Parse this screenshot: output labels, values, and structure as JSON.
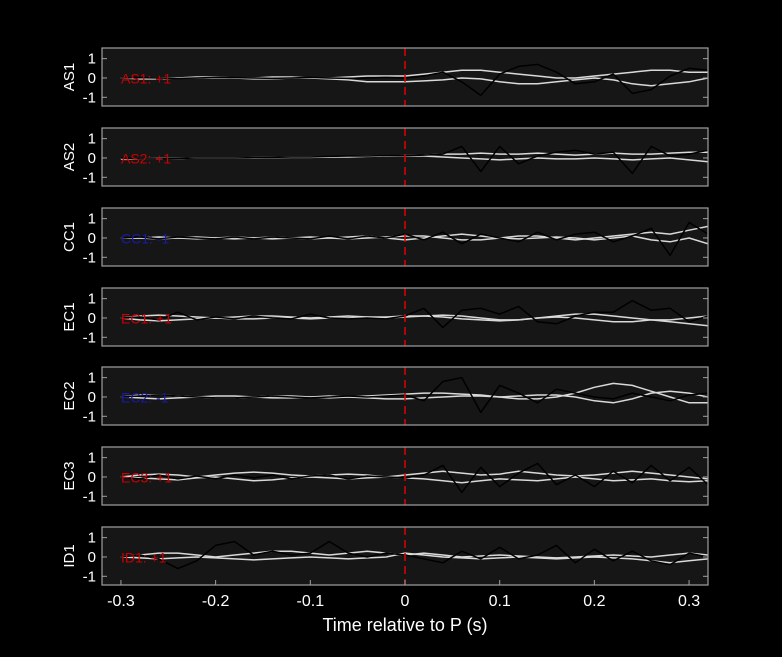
{
  "chart_data": [
    {
      "type": "line",
      "ylabel": "AS1",
      "annotation": "AS1: +1",
      "annotation_color": "#cc0000",
      "vline": 0,
      "vline_color": "#dd0000",
      "x": [
        -0.3,
        -0.28,
        -0.26,
        -0.24,
        -0.22,
        -0.2,
        -0.18,
        -0.16,
        -0.14,
        -0.12,
        -0.1,
        -0.08,
        -0.06,
        -0.04,
        -0.02,
        0,
        0.02,
        0.04,
        0.06,
        0.08,
        0.1,
        0.12,
        0.14,
        0.16,
        0.18,
        0.2,
        0.22,
        0.24,
        0.26,
        0.28,
        0.3,
        0.32
      ],
      "xlim": [
        -0.32,
        0.32
      ],
      "ylim": [
        -1.45,
        1.55
      ],
      "yticks": [
        -1,
        0,
        1
      ],
      "series": [
        {
          "color": "#d9d9d9",
          "values": [
            0,
            0,
            0,
            0,
            0,
            0,
            0,
            0,
            0.05,
            0.05,
            0,
            0,
            0.05,
            0.1,
            0.1,
            0.1,
            0.2,
            0.3,
            0.4,
            0.4,
            0.3,
            0.2,
            0.1,
            0,
            0,
            0.1,
            0.2,
            0.3,
            0.4,
            0.4,
            0.3,
            0.3
          ]
        },
        {
          "color": "#d9d9d9",
          "values": [
            0,
            -0.05,
            -0.05,
            0,
            0.05,
            0.05,
            0,
            -0.05,
            -0.05,
            0,
            0,
            -0.05,
            -0.1,
            -0.2,
            -0.2,
            -0.2,
            -0.15,
            -0.1,
            0,
            -0.05,
            -0.2,
            -0.3,
            -0.3,
            -0.2,
            -0.1,
            0,
            -0.1,
            -0.3,
            -0.4,
            -0.3,
            -0.2,
            0
          ]
        },
        {
          "color": "#000000",
          "values": [
            0,
            0.02,
            0,
            -0.03,
            0,
            0.03,
            0.02,
            0,
            -0.02,
            0,
            0.03,
            0,
            -0.02,
            0,
            0.03,
            0,
            0.1,
            0.3,
            -0.2,
            -0.9,
            0.2,
            0.6,
            0.7,
            0.3,
            -0.3,
            -0.2,
            0.2,
            -0.8,
            -0.6,
            0.1,
            0.5,
            0.4
          ]
        }
      ]
    },
    {
      "type": "line",
      "ylabel": "AS2",
      "annotation": "AS2: +1",
      "annotation_color": "#cc0000",
      "vline": 0,
      "vline_color": "#dd0000",
      "x": [
        -0.3,
        -0.28,
        -0.26,
        -0.24,
        -0.22,
        -0.2,
        -0.18,
        -0.16,
        -0.14,
        -0.12,
        -0.1,
        -0.08,
        -0.06,
        -0.04,
        -0.02,
        0,
        0.02,
        0.04,
        0.06,
        0.08,
        0.1,
        0.12,
        0.14,
        0.16,
        0.18,
        0.2,
        0.22,
        0.24,
        0.26,
        0.28,
        0.3,
        0.32
      ],
      "xlim": [
        -0.32,
        0.32
      ],
      "ylim": [
        -1.45,
        1.55
      ],
      "yticks": [
        -1,
        0,
        1
      ],
      "series": [
        {
          "color": "#d9d9d9",
          "values": [
            -0.05,
            -0.05,
            -0.05,
            -0.03,
            0,
            0,
            0,
            0.02,
            0.03,
            0.05,
            0.05,
            0.05,
            0.08,
            0.1,
            0.1,
            0.12,
            0.15,
            0.2,
            0.2,
            0.25,
            0.2,
            0.2,
            0.25,
            0.2,
            0.15,
            0.2,
            0.25,
            0.2,
            0.2,
            0.25,
            0.3,
            0.3
          ]
        },
        {
          "color": "#d9d9d9",
          "values": [
            -0.05,
            -0.05,
            -0.03,
            -0.03,
            0,
            0,
            0,
            0,
            0.02,
            0.03,
            0.03,
            0.05,
            0.05,
            0.08,
            0.1,
            0.1,
            0.1,
            0.05,
            0,
            -0.05,
            -0.1,
            -0.05,
            0,
            -0.05,
            -0.05,
            0,
            -0.05,
            -0.1,
            -0.05,
            0,
            -0.1,
            -0.2
          ]
        },
        {
          "color": "#000000",
          "values": [
            0,
            -0.05,
            -0.05,
            -0.03,
            0,
            0,
            0,
            0.02,
            0.03,
            0.05,
            0.05,
            0.08,
            0.1,
            0.1,
            0.12,
            0.12,
            0.15,
            0.2,
            0.6,
            -0.7,
            0.6,
            -0.3,
            0.1,
            0.3,
            0.4,
            0.2,
            0.3,
            -0.8,
            0.6,
            0.1,
            0.2,
            0.4
          ]
        }
      ]
    },
    {
      "type": "line",
      "ylabel": "CC1",
      "annotation": "CC1: -1",
      "annotation_color": "#1a1aa6",
      "vline": 0,
      "vline_color": "#dd0000",
      "x": [
        -0.3,
        -0.28,
        -0.26,
        -0.24,
        -0.22,
        -0.2,
        -0.18,
        -0.16,
        -0.14,
        -0.12,
        -0.1,
        -0.08,
        -0.06,
        -0.04,
        -0.02,
        0,
        0.02,
        0.04,
        0.06,
        0.08,
        0.1,
        0.12,
        0.14,
        0.16,
        0.18,
        0.2,
        0.22,
        0.24,
        0.26,
        0.28,
        0.3,
        0.32
      ],
      "xlim": [
        -0.32,
        0.32
      ],
      "ylim": [
        -1.45,
        1.55
      ],
      "yticks": [
        -1,
        0,
        1
      ],
      "series": [
        {
          "color": "#d9d9d9",
          "values": [
            0,
            0,
            0.05,
            0,
            -0.05,
            0,
            0.05,
            0,
            -0.05,
            0,
            0.05,
            0,
            -0.05,
            0,
            0.05,
            0.1,
            0.1,
            0,
            -0.1,
            -0.1,
            0,
            0.1,
            0.1,
            0,
            -0.1,
            0,
            0.1,
            0.2,
            0.3,
            0.2,
            0.4,
            0.6
          ]
        },
        {
          "color": "#d9d9d9",
          "values": [
            0,
            0,
            -0.05,
            0,
            0.05,
            0,
            -0.05,
            0,
            0.05,
            0,
            -0.05,
            0,
            0.05,
            0.1,
            0,
            -0.1,
            0,
            0.1,
            0.2,
            0.1,
            0,
            -0.05,
            0,
            0.05,
            0,
            -0.1,
            0,
            0.1,
            -0.1,
            -0.2,
            0,
            -0.3
          ]
        },
        {
          "color": "#000000",
          "values": [
            0,
            0.05,
            -0.05,
            0.05,
            0,
            -0.05,
            0.05,
            -0.05,
            0.05,
            0,
            -0.05,
            0.1,
            -0.05,
            0.1,
            0,
            0.2,
            -0.1,
            0.3,
            -0.3,
            0.2,
            0,
            -0.2,
            0.3,
            -0.1,
            0.2,
            0.3,
            -0.2,
            0.1,
            0.5,
            -0.9,
            0.8,
            0.2
          ]
        }
      ]
    },
    {
      "type": "line",
      "ylabel": "EC1",
      "annotation": "EC1: +1",
      "annotation_color": "#cc0000",
      "vline": 0,
      "vline_color": "#dd0000",
      "x": [
        -0.3,
        -0.28,
        -0.26,
        -0.24,
        -0.22,
        -0.2,
        -0.18,
        -0.16,
        -0.14,
        -0.12,
        -0.1,
        -0.08,
        -0.06,
        -0.04,
        -0.02,
        0,
        0.02,
        0.04,
        0.06,
        0.08,
        0.1,
        0.12,
        0.14,
        0.16,
        0.18,
        0.2,
        0.22,
        0.24,
        0.26,
        0.28,
        0.3,
        0.32
      ],
      "xlim": [
        -0.32,
        0.32
      ],
      "ylim": [
        -1.45,
        1.55
      ],
      "yticks": [
        -1,
        0,
        1
      ],
      "series": [
        {
          "color": "#d9d9d9",
          "values": [
            0,
            0.1,
            0.15,
            0.1,
            0.05,
            0,
            0.05,
            0.1,
            0.1,
            0.05,
            0,
            0.05,
            0.1,
            0.05,
            0,
            0.05,
            0.1,
            0.15,
            0.1,
            0,
            -0.1,
            -0.1,
            0,
            0.1,
            0.2,
            0.2,
            0.1,
            0,
            -0.1,
            -0.1,
            0,
            0.1
          ]
        },
        {
          "color": "#d9d9d9",
          "values": [
            0,
            -0.1,
            -0.15,
            -0.1,
            -0.05,
            0,
            -0.05,
            -0.05,
            0,
            0,
            -0.05,
            0,
            0,
            0.05,
            0.05,
            0.1,
            0.1,
            0.05,
            -0.05,
            -0.1,
            -0.15,
            -0.1,
            0,
            0.05,
            0,
            -0.1,
            -0.2,
            -0.2,
            -0.1,
            -0.2,
            -0.3,
            -0.4
          ]
        },
        {
          "color": "#000000",
          "values": [
            0,
            0.05,
            -0.1,
            0.3,
            -0.1,
            0.05,
            -0.05,
            0.1,
            0,
            -0.05,
            0.2,
            0,
            -0.05,
            0,
            -0.05,
            0.1,
            0.5,
            -0.5,
            0.4,
            0.5,
            0.2,
            0.6,
            -0.2,
            -0.3,
            0.1,
            0.3,
            0.3,
            0.9,
            0.4,
            0.5,
            -0.2,
            0.1
          ]
        }
      ]
    },
    {
      "type": "line",
      "ylabel": "EC2",
      "annotation": "EC2: -1",
      "annotation_color": "#1a1aa6",
      "vline": 0,
      "vline_color": "#dd0000",
      "x": [
        -0.3,
        -0.28,
        -0.26,
        -0.24,
        -0.22,
        -0.2,
        -0.18,
        -0.16,
        -0.14,
        -0.12,
        -0.1,
        -0.08,
        -0.06,
        -0.04,
        -0.02,
        0,
        0.02,
        0.04,
        0.06,
        0.08,
        0.1,
        0.12,
        0.14,
        0.16,
        0.18,
        0.2,
        0.22,
        0.24,
        0.26,
        0.28,
        0.3,
        0.32
      ],
      "xlim": [
        -0.32,
        0.32
      ],
      "ylim": [
        -1.45,
        1.55
      ],
      "yticks": [
        -1,
        0,
        1
      ],
      "series": [
        {
          "color": "#d9d9d9",
          "values": [
            0,
            0.1,
            0.1,
            0.05,
            0,
            -0.05,
            -0.05,
            0,
            0.05,
            0.05,
            0,
            -0.05,
            0,
            0.05,
            0.1,
            0.15,
            0.2,
            0.2,
            0.15,
            0.1,
            0,
            -0.1,
            -0.1,
            0,
            0.2,
            0.5,
            0.7,
            0.6,
            0.3,
            0,
            -0.3,
            -0.3
          ]
        },
        {
          "color": "#d9d9d9",
          "values": [
            0,
            -0.05,
            -0.1,
            -0.05,
            0,
            0.05,
            0.05,
            0,
            -0.05,
            -0.05,
            0,
            0.05,
            0,
            -0.05,
            -0.1,
            -0.1,
            -0.05,
            0,
            0.05,
            0.05,
            0,
            0.05,
            0.1,
            0.1,
            0,
            -0.2,
            -0.3,
            -0.1,
            0.2,
            0.3,
            0.2,
            0
          ]
        },
        {
          "color": "#000000",
          "values": [
            0,
            0.05,
            0.1,
            0.05,
            0,
            -0.05,
            -0.05,
            0,
            0.05,
            0,
            -0.05,
            0,
            0.05,
            0,
            0.05,
            0.1,
            -0.2,
            0.8,
            1.0,
            -0.8,
            0.6,
            0.2,
            -0.3,
            0.4,
            0.2,
            0,
            -0.1,
            0.2,
            0,
            -0.2,
            0.1,
            0.2
          ]
        }
      ]
    },
    {
      "type": "line",
      "ylabel": "EC3",
      "annotation": "EC3: +1",
      "annotation_color": "#cc0000",
      "vline": 0,
      "vline_color": "#dd0000",
      "x": [
        -0.3,
        -0.28,
        -0.26,
        -0.24,
        -0.22,
        -0.2,
        -0.18,
        -0.16,
        -0.14,
        -0.12,
        -0.1,
        -0.08,
        -0.06,
        -0.04,
        -0.02,
        0,
        0.02,
        0.04,
        0.06,
        0.08,
        0.1,
        0.12,
        0.14,
        0.16,
        0.18,
        0.2,
        0.22,
        0.24,
        0.26,
        0.28,
        0.3,
        0.32
      ],
      "xlim": [
        -0.32,
        0.32
      ],
      "ylim": [
        -1.45,
        1.55
      ],
      "yticks": [
        -1,
        0,
        1
      ],
      "series": [
        {
          "color": "#d9d9d9",
          "values": [
            0,
            0.1,
            0.15,
            0.1,
            0,
            0.1,
            0.2,
            0.25,
            0.2,
            0.1,
            0.05,
            0.1,
            0.15,
            0.1,
            0,
            0.1,
            0.2,
            0.3,
            0.2,
            0.1,
            0.15,
            0.3,
            0.2,
            0.1,
            0.05,
            0.1,
            0.2,
            0.3,
            0.2,
            0.1,
            0,
            -0.1
          ]
        },
        {
          "color": "#d9d9d9",
          "values": [
            0,
            -0.05,
            -0.1,
            -0.15,
            -0.05,
            0,
            -0.1,
            -0.2,
            -0.15,
            -0.05,
            0,
            -0.05,
            -0.1,
            -0.05,
            0,
            -0.05,
            -0.1,
            -0.2,
            -0.3,
            -0.2,
            -0.1,
            -0.15,
            -0.2,
            -0.1,
            0,
            -0.1,
            -0.2,
            -0.15,
            -0.1,
            -0.2,
            -0.25,
            -0.2
          ]
        },
        {
          "color": "#000000",
          "values": [
            0,
            -0.1,
            0.1,
            -0.1,
            0.05,
            -0.1,
            0.1,
            -0.05,
            0.1,
            -0.1,
            0.05,
            0.1,
            -0.1,
            0.05,
            0,
            -0.05,
            0.1,
            0.6,
            -0.8,
            0.5,
            -0.5,
            0.2,
            0.7,
            -0.4,
            0.1,
            -0.5,
            0.3,
            -0.3,
            0.6,
            -0.2,
            0.5,
            -0.4
          ]
        }
      ]
    },
    {
      "type": "line",
      "ylabel": "ID1",
      "annotation": "ID1: +1",
      "annotation_color": "#cc0000",
      "vline": 0,
      "vline_color": "#dd0000",
      "x": [
        -0.3,
        -0.28,
        -0.26,
        -0.24,
        -0.22,
        -0.2,
        -0.18,
        -0.16,
        -0.14,
        -0.12,
        -0.1,
        -0.08,
        -0.06,
        -0.04,
        -0.02,
        0,
        0.02,
        0.04,
        0.06,
        0.08,
        0.1,
        0.12,
        0.14,
        0.16,
        0.18,
        0.2,
        0.22,
        0.24,
        0.26,
        0.28,
        0.3,
        0.32
      ],
      "xlim": [
        -0.32,
        0.32
      ],
      "ylim": [
        -1.45,
        1.55
      ],
      "yticks": [
        -1,
        0,
        1
      ],
      "xticks": [
        -0.3,
        -0.2,
        -0.1,
        0,
        0.1,
        0.2,
        0.3
      ],
      "xlabel": "Time relative to P (s)",
      "series": [
        {
          "color": "#d9d9d9",
          "values": [
            0,
            0.1,
            0.2,
            0.2,
            0.1,
            0,
            0.1,
            0.2,
            0.3,
            0.3,
            0.2,
            0.1,
            0.2,
            0.3,
            0.2,
            0.1,
            0.2,
            0.1,
            0,
            0.05,
            0.1,
            0.05,
            0,
            -0.05,
            0,
            0.05,
            0.1,
            0.05,
            0,
            0.1,
            0.2,
            0.1
          ]
        },
        {
          "color": "#d9d9d9",
          "values": [
            0,
            -0.05,
            -0.1,
            -0.05,
            0,
            -0.05,
            -0.1,
            -0.15,
            -0.1,
            -0.05,
            0,
            -0.05,
            -0.1,
            -0.05,
            0,
            0.2,
            0.1,
            0,
            -0.05,
            -0.1,
            -0.05,
            0,
            -0.05,
            -0.1,
            -0.05,
            0,
            -0.05,
            -0.1,
            -0.2,
            -0.3,
            -0.2,
            -0.1
          ]
        },
        {
          "color": "#000000",
          "values": [
            0,
            0.1,
            -0.1,
            -0.6,
            -0.2,
            0.6,
            0.8,
            0.1,
            0.3,
            0.1,
            0.2,
            0.8,
            0.2,
            0,
            0.2,
            0.1,
            -0.1,
            -0.3,
            0.3,
            -0.1,
            0.5,
            -0.1,
            0.1,
            0.6,
            -0.3,
            0.4,
            -0.2,
            0.3,
            -0.2,
            -0.4,
            0.2,
            0
          ]
        }
      ]
    }
  ]
}
